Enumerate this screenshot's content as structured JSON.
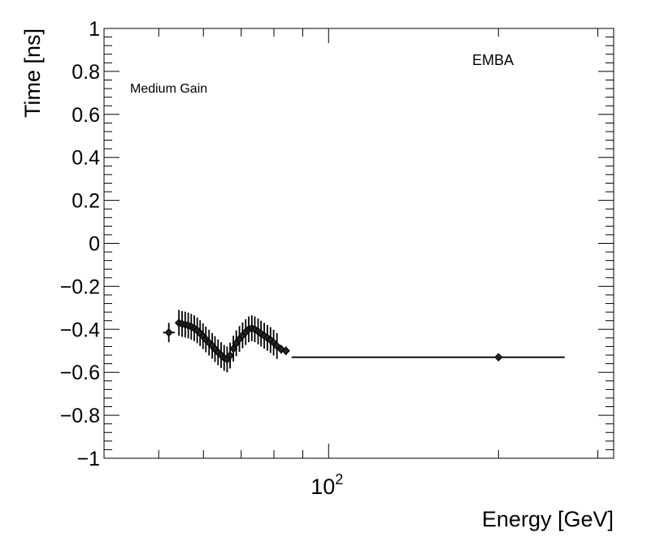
{
  "chart_data": {
    "type": "scatter",
    "title": "",
    "xlabel": "Energy [GeV]",
    "ylabel": "Time [ns]",
    "xscale": "log",
    "xlim": [
      40,
      320
    ],
    "ylim": [
      -1,
      1
    ],
    "grid": false,
    "y_ticks": [
      {
        "value": 1,
        "label": "1"
      },
      {
        "value": 0.8,
        "label": "0.8"
      },
      {
        "value": 0.6,
        "label": "0.6"
      },
      {
        "value": 0.4,
        "label": "0.4"
      },
      {
        "value": 0.2,
        "label": "0.2"
      },
      {
        "value": 0,
        "label": "0"
      },
      {
        "value": -0.2,
        "label": "−0.2"
      },
      {
        "value": -0.4,
        "label": "−0.4"
      },
      {
        "value": -0.6,
        "label": "−0.6"
      },
      {
        "value": -0.8,
        "label": "−0.8"
      },
      {
        "value": -1,
        "label": "−1"
      }
    ],
    "x_tick_label": {
      "value": 100,
      "base": "10",
      "exp": "2"
    },
    "annotations": {
      "gain": "Medium Gain",
      "region": "EMBA"
    },
    "series": [
      {
        "name": "points",
        "points": [
          {
            "x": 52.1,
            "y": -0.415,
            "err": 0.045,
            "xlo": 50.9,
            "xhi": 53.4
          },
          {
            "x": 54.3,
            "y": -0.37,
            "err": 0.06,
            "xlo": 54.3,
            "xhi": 54.3
          },
          {
            "x": 55.0,
            "y": -0.375,
            "err": 0.06,
            "xlo": 55.0,
            "xhi": 55.0
          },
          {
            "x": 55.7,
            "y": -0.378,
            "err": 0.06,
            "xlo": 55.7,
            "xhi": 55.7
          },
          {
            "x": 56.4,
            "y": -0.382,
            "err": 0.06,
            "xlo": 56.4,
            "xhi": 56.4
          },
          {
            "x": 57.1,
            "y": -0.388,
            "err": 0.06,
            "xlo": 57.1,
            "xhi": 57.1
          },
          {
            "x": 57.8,
            "y": -0.395,
            "err": 0.06,
            "xlo": 57.8,
            "xhi": 57.8
          },
          {
            "x": 58.5,
            "y": -0.405,
            "err": 0.06,
            "xlo": 58.5,
            "xhi": 58.5
          },
          {
            "x": 59.2,
            "y": -0.418,
            "err": 0.06,
            "xlo": 59.2,
            "xhi": 59.2
          },
          {
            "x": 59.9,
            "y": -0.432,
            "err": 0.06,
            "xlo": 59.9,
            "xhi": 59.9
          },
          {
            "x": 60.6,
            "y": -0.447,
            "err": 0.06,
            "xlo": 60.6,
            "xhi": 60.6
          },
          {
            "x": 61.4,
            "y": -0.462,
            "err": 0.06,
            "xlo": 61.4,
            "xhi": 61.4
          },
          {
            "x": 62.2,
            "y": -0.477,
            "err": 0.06,
            "xlo": 62.2,
            "xhi": 62.2
          },
          {
            "x": 62.9,
            "y": -0.492,
            "err": 0.06,
            "xlo": 62.9,
            "xhi": 62.9
          },
          {
            "x": 63.7,
            "y": -0.507,
            "err": 0.06,
            "xlo": 63.7,
            "xhi": 63.7
          },
          {
            "x": 64.5,
            "y": -0.52,
            "err": 0.06,
            "xlo": 64.5,
            "xhi": 64.5
          },
          {
            "x": 65.3,
            "y": -0.533,
            "err": 0.06,
            "xlo": 65.3,
            "xhi": 65.3
          },
          {
            "x": 66.1,
            "y": -0.54,
            "err": 0.06,
            "xlo": 66.1,
            "xhi": 66.1
          },
          {
            "x": 66.9,
            "y": -0.522,
            "err": 0.06,
            "xlo": 66.9,
            "xhi": 66.9
          },
          {
            "x": 67.8,
            "y": -0.49,
            "err": 0.06,
            "xlo": 67.8,
            "xhi": 67.8
          },
          {
            "x": 68.6,
            "y": -0.465,
            "err": 0.06,
            "xlo": 68.6,
            "xhi": 68.6
          },
          {
            "x": 69.5,
            "y": -0.445,
            "err": 0.06,
            "xlo": 69.5,
            "xhi": 69.5
          },
          {
            "x": 70.4,
            "y": -0.428,
            "err": 0.06,
            "xlo": 70.4,
            "xhi": 70.4
          },
          {
            "x": 71.3,
            "y": -0.413,
            "err": 0.06,
            "xlo": 71.3,
            "xhi": 71.3
          },
          {
            "x": 72.2,
            "y": -0.4,
            "err": 0.06,
            "xlo": 72.2,
            "xhi": 72.2
          },
          {
            "x": 73.1,
            "y": -0.395,
            "err": 0.06,
            "xlo": 73.1,
            "xhi": 73.1
          },
          {
            "x": 74.0,
            "y": -0.4,
            "err": 0.06,
            "xlo": 74.0,
            "xhi": 74.0
          },
          {
            "x": 75.0,
            "y": -0.41,
            "err": 0.06,
            "xlo": 75.0,
            "xhi": 75.0
          },
          {
            "x": 75.9,
            "y": -0.42,
            "err": 0.06,
            "xlo": 75.9,
            "xhi": 75.9
          },
          {
            "x": 76.9,
            "y": -0.43,
            "err": 0.06,
            "xlo": 76.9,
            "xhi": 76.9
          },
          {
            "x": 77.9,
            "y": -0.44,
            "err": 0.06,
            "xlo": 77.9,
            "xhi": 77.9
          },
          {
            "x": 78.9,
            "y": -0.45,
            "err": 0.06,
            "xlo": 78.9,
            "xhi": 78.9
          },
          {
            "x": 79.9,
            "y": -0.462,
            "err": 0.06,
            "xlo": 79.9,
            "xhi": 79.9
          },
          {
            "x": 81.0,
            "y": -0.478,
            "err": 0.06,
            "xlo": 81.0,
            "xhi": 81.0
          },
          {
            "x": 82.4,
            "y": -0.493,
            "err": 0.02,
            "xlo": 82.4,
            "xhi": 82.4
          },
          {
            "x": 84.0,
            "y": -0.5,
            "err": 0.02,
            "xlo": 84.0,
            "xhi": 84.0
          },
          {
            "x": 200,
            "y": -0.53,
            "err": 0.01,
            "xlo": 86.0,
            "xhi": 262
          }
        ]
      }
    ]
  }
}
